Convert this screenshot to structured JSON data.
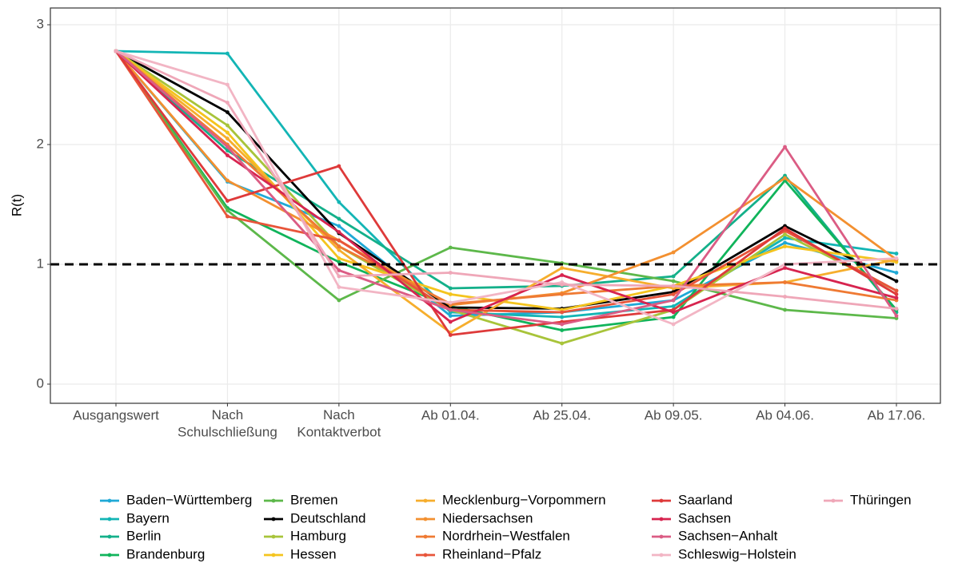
{
  "chart_data": {
    "type": "line",
    "ylabel": "R(t)",
    "categories": [
      "Ausgangswert",
      "Nach\nSchulschließung",
      "Nach\nKontaktverbot",
      "Ab 01.04.",
      "Ab 25.04.",
      "Ab 09.05.",
      "Ab 04.06.",
      "Ab 17.06."
    ],
    "ylim": [
      -0.16,
      3.14
    ],
    "yticks": [
      0,
      1,
      2,
      3
    ],
    "grid": true,
    "hline": 1,
    "legend": "bottom",
    "series": [
      {
        "name": "Baden−Württemberg",
        "color": "#1FA9D6",
        "values": [
          2.78,
          1.69,
          1.32,
          0.57,
          0.6,
          0.7,
          1.18,
          0.93
        ]
      },
      {
        "name": "Bayern",
        "color": "#13B5B5",
        "values": [
          2.78,
          2.76,
          1.52,
          0.6,
          0.56,
          0.65,
          1.22,
          1.09
        ]
      },
      {
        "name": "Berlin",
        "color": "#14B08A",
        "values": [
          2.78,
          1.95,
          1.38,
          0.8,
          0.82,
          0.9,
          1.74,
          0.6
        ]
      },
      {
        "name": "Brandenburg",
        "color": "#10B45B",
        "values": [
          2.78,
          1.47,
          1.02,
          0.65,
          0.45,
          0.56,
          1.7,
          0.62
        ]
      },
      {
        "name": "Bremen",
        "color": "#5DB84A",
        "values": [
          2.78,
          1.45,
          0.7,
          1.14,
          1.01,
          0.86,
          0.62,
          0.55
        ]
      },
      {
        "name": "Deutschland",
        "color": "#000000",
        "values": [
          2.78,
          2.27,
          1.26,
          0.64,
          0.63,
          0.77,
          1.32,
          0.86
        ]
      },
      {
        "name": "Hamburg",
        "color": "#A8C43A",
        "values": [
          2.78,
          2.16,
          1.15,
          0.62,
          0.34,
          0.62,
          1.25,
          0.78
        ]
      },
      {
        "name": "Hessen",
        "color": "#F4C41E",
        "values": [
          2.78,
          2.1,
          1.05,
          0.75,
          0.62,
          0.82,
          1.15,
          1.02
        ]
      },
      {
        "name": "Mecklenburg−Vorpommern",
        "color": "#F6AE2D",
        "values": [
          2.78,
          2.05,
          1.12,
          0.43,
          0.97,
          0.8,
          0.85,
          1.04
        ]
      },
      {
        "name": "Niedersachsen",
        "color": "#F39030",
        "values": [
          2.78,
          1.7,
          1.2,
          0.66,
          0.76,
          1.1,
          1.72,
          1.04
        ]
      },
      {
        "name": "Nordrhein−Westfalen",
        "color": "#EF7A33",
        "values": [
          2.78,
          2.0,
          1.15,
          0.67,
          0.75,
          0.82,
          0.85,
          0.7
        ]
      },
      {
        "name": "Rheinland−Pfalz",
        "color": "#E8553A",
        "values": [
          2.78,
          1.4,
          1.2,
          0.62,
          0.6,
          0.75,
          1.28,
          0.78
        ]
      },
      {
        "name": "Saarland",
        "color": "#DE3A3A",
        "values": [
          2.78,
          1.53,
          1.82,
          0.41,
          0.52,
          0.62,
          1.3,
          0.75
        ]
      },
      {
        "name": "Sachsen",
        "color": "#D7244F",
        "values": [
          2.78,
          1.91,
          1.27,
          0.52,
          0.91,
          0.6,
          0.97,
          0.72
        ]
      },
      {
        "name": "Sachsen−Anhalt",
        "color": "#DB5C84",
        "values": [
          2.78,
          1.98,
          0.95,
          0.62,
          0.5,
          0.7,
          1.98,
          0.57
        ]
      },
      {
        "name": "Schleswig−Holstein",
        "color": "#F2B5C4",
        "values": [
          2.78,
          2.5,
          0.81,
          0.68,
          0.85,
          0.5,
          1.0,
          1.05
        ]
      },
      {
        "name": "Thüringen",
        "color": "#EFA7B8",
        "values": [
          2.78,
          2.35,
          0.9,
          0.93,
          0.83,
          0.82,
          0.73,
          0.63
        ]
      }
    ]
  }
}
